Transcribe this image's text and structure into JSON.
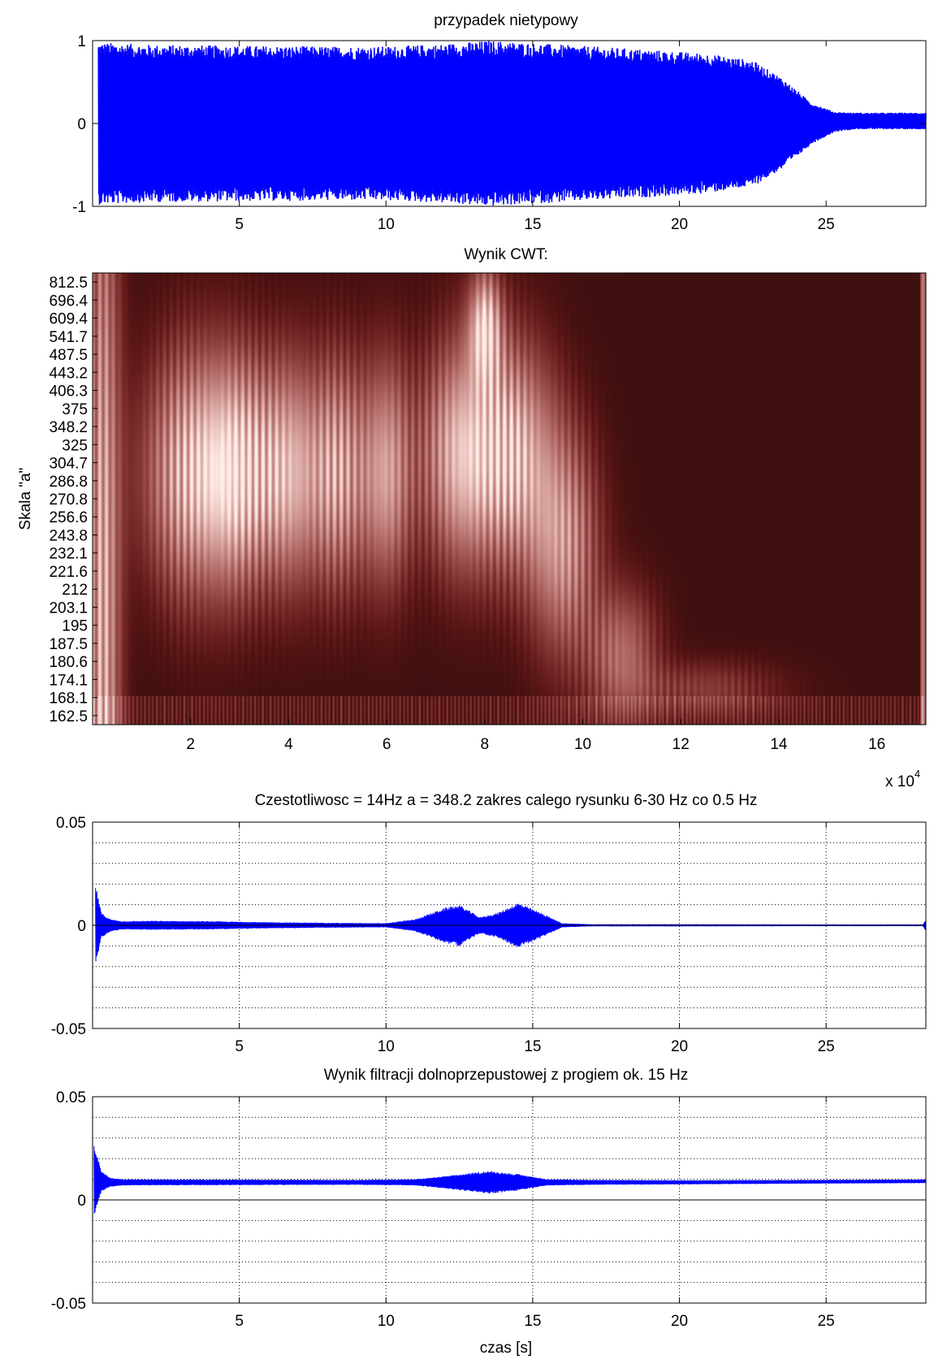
{
  "chart_data": [
    {
      "id": "signal",
      "type": "line",
      "title": "przypadek nietypowy",
      "xlabel": "",
      "ylabel": "",
      "xlim": [
        0,
        28.4
      ],
      "ylim": [
        -1,
        1
      ],
      "xticks": [
        5,
        10,
        15,
        20,
        25
      ],
      "yticks": [
        -1,
        0,
        1
      ],
      "grid": false,
      "color": "#0000ff",
      "envelope": {
        "t": [
          0.2,
          2,
          5,
          8,
          10,
          12,
          13.5,
          15,
          17,
          19,
          21,
          22.5,
          23.5,
          24.5,
          25.3,
          26,
          27,
          28.4
        ],
        "amp": [
          0.98,
          0.95,
          0.94,
          0.93,
          0.93,
          0.96,
          1.0,
          0.97,
          0.93,
          0.89,
          0.84,
          0.76,
          0.55,
          0.25,
          0.12,
          0.1,
          0.1,
          0.1
        ],
        "offset": [
          0,
          0,
          0,
          0,
          0,
          0,
          0,
          0,
          0,
          0,
          0,
          0,
          0,
          0,
          0.02,
          0.03,
          0.03,
          0.03
        ]
      }
    },
    {
      "id": "cwt",
      "type": "heatmap",
      "title": "Wynik CWT:",
      "ylabel": "Skala \"a\"",
      "xlim": [
        0,
        170000
      ],
      "xticks": [
        2,
        4,
        6,
        8,
        10,
        12,
        14,
        16
      ],
      "x_exponent_label": "x 10",
      "x_exponent": "4",
      "yticklabels": [
        "812.5",
        "696.4",
        "609.4",
        "541.7",
        "487.5",
        "443.2",
        "406.3",
        "375",
        "348.2",
        "325",
        "304.7",
        "286.8",
        "270.8",
        "256.6",
        "243.8",
        "232.1",
        "221.6",
        "212",
        "203.1",
        "195",
        "187.5",
        "180.6",
        "174.1",
        "168.1",
        "162.5"
      ],
      "colormap": "pink",
      "blobs": [
        {
          "x": 0.2,
          "y": 20,
          "wx": 0.35,
          "wy": 30,
          "intensity": 0.9
        },
        {
          "x": 2.0,
          "y": 11,
          "wx": 0.95,
          "wy": 6.5,
          "intensity": 0.95
        },
        {
          "x": 3.0,
          "y": 11,
          "wx": 0.7,
          "wy": 6.0,
          "intensity": 0.9
        },
        {
          "x": 4.0,
          "y": 11,
          "wx": 0.6,
          "wy": 6.0,
          "intensity": 0.85
        },
        {
          "x": 5.0,
          "y": 11,
          "wx": 0.6,
          "wy": 6.0,
          "intensity": 0.85
        },
        {
          "x": 6.0,
          "y": 11,
          "wx": 0.5,
          "wy": 6.0,
          "intensity": 0.8
        },
        {
          "x": 8.0,
          "y": 3,
          "wx": 0.32,
          "wy": 3.0,
          "intensity": 1.0
        },
        {
          "x": 7.5,
          "y": 10,
          "wx": 0.8,
          "wy": 6.0,
          "intensity": 0.95
        },
        {
          "x": 8.6,
          "y": 10,
          "wx": 0.8,
          "wy": 6.0,
          "intensity": 0.9
        },
        {
          "x": 9.6,
          "y": 15,
          "wx": 0.7,
          "wy": 6.0,
          "intensity": 0.75
        },
        {
          "x": 10.8,
          "y": 21,
          "wx": 0.7,
          "wy": 3.5,
          "intensity": 0.55
        },
        {
          "x": 12.5,
          "y": 23,
          "wx": 1.5,
          "wy": 1.5,
          "intensity": 0.3
        }
      ]
    },
    {
      "id": "filtered14",
      "type": "line",
      "title": "Czestotliwosc = 14Hz  a = 348.2 zakres calego rysunku 6-30 Hz co 0.5 Hz",
      "xlabel": "",
      "ylabel": "",
      "xlim": [
        0,
        28.4
      ],
      "ylim": [
        -0.05,
        0.05
      ],
      "xticks": [
        5,
        10,
        15,
        20,
        25
      ],
      "yticks": [
        -0.05,
        0,
        0.05
      ],
      "grid": true,
      "color": "#0000ff",
      "envelope": {
        "t": [
          0.1,
          0.3,
          0.6,
          1.0,
          2,
          4,
          6,
          8,
          10,
          11,
          12,
          12.5,
          13.2,
          13.8,
          14.5,
          15.3,
          16,
          17,
          20,
          25,
          28.3,
          28.4
        ],
        "amp": [
          0.02,
          0.006,
          0.003,
          0.002,
          0.0022,
          0.002,
          0.0015,
          0.0012,
          0.001,
          0.003,
          0.0085,
          0.01,
          0.004,
          0.006,
          0.011,
          0.006,
          0.001,
          0.0005,
          0.0005,
          0.0004,
          0.0004,
          0.003
        ],
        "offset": [
          0,
          0,
          0,
          0,
          0,
          0,
          0,
          0,
          0,
          0,
          0,
          0,
          0,
          0,
          0,
          0,
          0,
          0,
          0,
          0,
          0,
          0
        ]
      }
    },
    {
      "id": "lowpass",
      "type": "line",
      "title": "Wynik filtracji dolnoprzepustowej z progiem ok. 15 Hz",
      "xlabel": "czas [s]",
      "ylabel": "",
      "xlim": [
        0,
        28.4
      ],
      "ylim": [
        -0.05,
        0.05
      ],
      "xticks": [
        5,
        10,
        15,
        20,
        25
      ],
      "yticks": [
        -0.05,
        0,
        0.05
      ],
      "grid": true,
      "color": "#0000ff",
      "envelope": {
        "t": [
          0.05,
          0.3,
          0.6,
          1.0,
          3,
          6,
          9,
          11,
          12,
          13.5,
          14.5,
          15.5,
          17,
          20,
          25,
          28.4
        ],
        "amp": [
          0.018,
          0.005,
          0.0022,
          0.0015,
          0.0014,
          0.0013,
          0.0012,
          0.0015,
          0.003,
          0.0055,
          0.004,
          0.0015,
          0.0012,
          0.001,
          0.0009,
          0.0009
        ],
        "offset": [
          0.009,
          0.009,
          0.0085,
          0.0085,
          0.0085,
          0.0085,
          0.0085,
          0.0085,
          0.0085,
          0.0085,
          0.0085,
          0.0085,
          0.0085,
          0.0085,
          0.0088,
          0.009
        ]
      }
    }
  ]
}
